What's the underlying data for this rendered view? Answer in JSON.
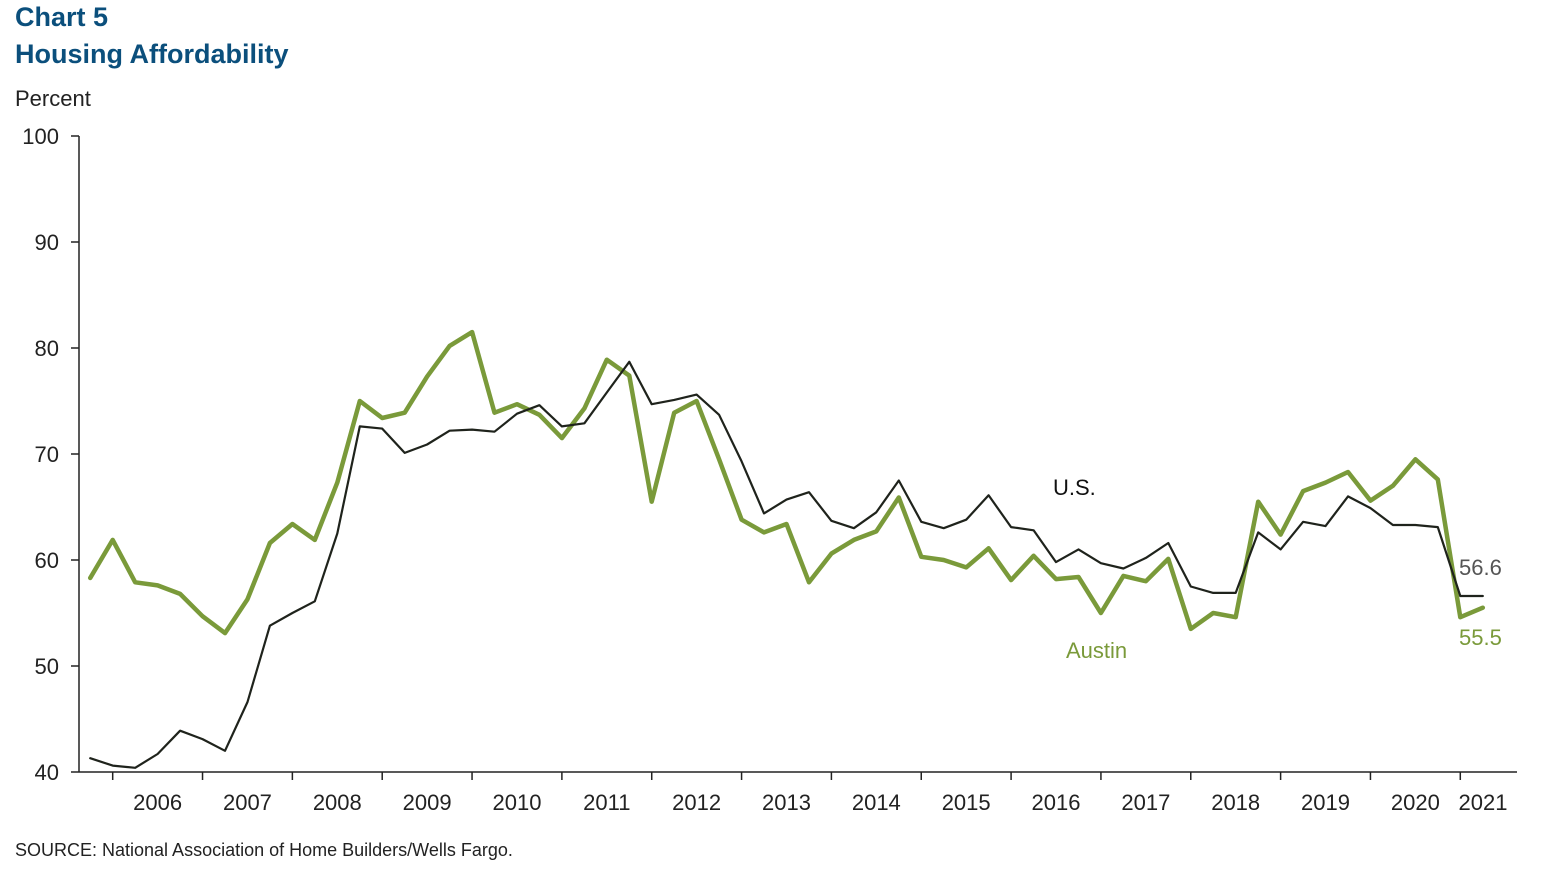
{
  "header": {
    "chart_number": "Chart 5",
    "title": "Housing Affordability"
  },
  "footer": {
    "source": "SOURCE:  National Association of Home  Builders/Wells Fargo."
  },
  "colors": {
    "title": "#0b4f7c",
    "us_line": "#1f231c",
    "austin_line": "#7a9a3a",
    "us_label": "#111111",
    "us_value_label": "#555555",
    "axis": "#222222"
  },
  "chart_data": {
    "type": "line",
    "title": "Housing Affordability",
    "ylabel": "Percent",
    "xlabel": "",
    "ylim": [
      40,
      100
    ],
    "yticks": [
      40,
      50,
      60,
      70,
      80,
      90,
      100
    ],
    "grid": false,
    "x_frequency": "quarterly",
    "x_start": "2005 Q3",
    "x_end": "2021 Q3",
    "year_labels": [
      "2006",
      "2007",
      "2008",
      "2009",
      "2010",
      "2011",
      "2012",
      "2013",
      "2014",
      "2015",
      "2016",
      "2017",
      "2018",
      "2019",
      "2020",
      "2021"
    ],
    "series": [
      {
        "name": "U.S.",
        "values": [
          41.3,
          40.6,
          40.4,
          41.7,
          43.9,
          43.1,
          42.0,
          46.6,
          53.8,
          55.0,
          56.1,
          62.5,
          72.6,
          72.4,
          70.1,
          70.9,
          72.2,
          72.3,
          72.1,
          73.8,
          74.6,
          72.6,
          72.9,
          75.8,
          78.7,
          74.7,
          75.1,
          75.6,
          73.7,
          69.3,
          64.4,
          65.7,
          66.4,
          63.7,
          63.0,
          64.5,
          67.5,
          63.6,
          63.0,
          63.8,
          66.1,
          63.1,
          62.8,
          59.8,
          61.0,
          59.7,
          59.2,
          60.2,
          61.6,
          57.5,
          56.9,
          56.9,
          62.6,
          61.0,
          63.6,
          63.2,
          66.0,
          64.9,
          63.3,
          63.3,
          63.1,
          56.6,
          56.6
        ],
        "end_label": "56.6"
      },
      {
        "name": "Austin",
        "values": [
          58.3,
          61.9,
          57.9,
          57.6,
          56.8,
          54.7,
          53.1,
          56.3,
          61.6,
          63.4,
          61.9,
          67.3,
          75.0,
          73.4,
          73.9,
          77.3,
          80.2,
          81.5,
          73.9,
          74.7,
          73.7,
          71.5,
          74.3,
          78.9,
          77.4,
          65.5,
          73.9,
          75.0,
          69.5,
          63.8,
          62.6,
          63.4,
          57.9,
          60.6,
          61.9,
          62.7,
          65.9,
          60.3,
          60.0,
          59.3,
          61.1,
          58.1,
          60.4,
          58.2,
          58.4,
          55.0,
          58.5,
          58.0,
          60.1,
          53.5,
          55.0,
          54.6,
          65.5,
          62.4,
          66.5,
          67.3,
          68.3,
          65.6,
          67.0,
          69.5,
          67.6,
          54.6,
          55.5
        ],
        "end_label": "55.5"
      }
    ]
  }
}
